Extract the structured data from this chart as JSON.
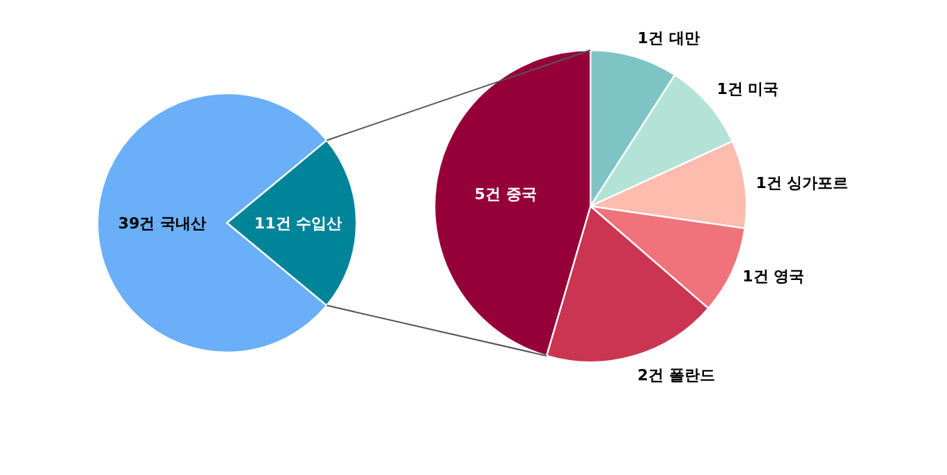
{
  "chart_data": [
    {
      "type": "pie",
      "categories": [
        "39건 국내산",
        "11건 수입산"
      ],
      "values": [
        39,
        11
      ],
      "colors": [
        "#6aaff7",
        "#00849a"
      ]
    },
    {
      "type": "pie",
      "categories": [
        "1건 대만",
        "1건 미국",
        "1건 싱가포르",
        "1건 영국",
        "2건 폴란드",
        "5건 중국"
      ],
      "values": [
        1,
        1,
        1,
        1,
        2,
        5
      ],
      "colors": [
        "#7fc4c4",
        "#b3e3d6",
        "#fdbcae",
        "#f0737b",
        "#cc3552",
        "#950038"
      ]
    }
  ]
}
